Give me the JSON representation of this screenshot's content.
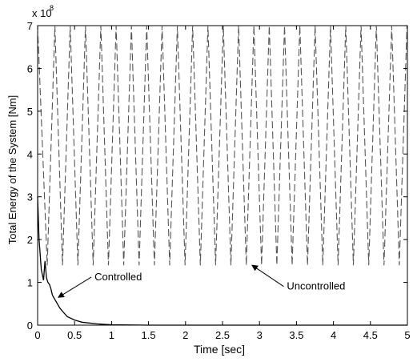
{
  "chart_data": {
    "type": "line",
    "title": "",
    "xlabel": "Time [sec]",
    "ylabel": "Total Energy of the System [Nm]",
    "xlim": [
      0,
      5
    ],
    "ylim": [
      0,
      7
    ],
    "y_exponent_label": "x 10",
    "y_exponent_power": "8",
    "xticks": [
      0,
      0.5,
      1,
      1.5,
      2,
      2.5,
      3,
      3.5,
      4,
      4.5,
      5
    ],
    "xtick_labels": [
      "0",
      "0.5",
      "1",
      "1.5",
      "2",
      "2.5",
      "3",
      "3.5",
      "4",
      "4.5",
      "5"
    ],
    "yticks": [
      0,
      1,
      2,
      3,
      4,
      5,
      6,
      7
    ],
    "ytick_labels": [
      "0",
      "1",
      "2",
      "3",
      "4",
      "5",
      "6",
      "7"
    ],
    "grid": false,
    "series": [
      {
        "name": "Uncontrolled",
        "style": "dashed",
        "color": "#555555",
        "peak_value": 7.0,
        "trough_value": 1.4,
        "period": 0.207,
        "first_trough_time": 0.13,
        "end_time": 5.0
      },
      {
        "name": "Controlled",
        "style": "solid",
        "color": "#000000",
        "x": [
          0,
          0.02,
          0.05,
          0.08,
          0.1,
          0.12,
          0.14,
          0.16,
          0.18,
          0.2,
          0.25,
          0.3,
          0.35,
          0.4,
          0.5,
          0.6,
          0.8,
          1.0,
          1.5,
          2.0,
          5.0
        ],
        "values": [
          3.0,
          2.0,
          1.3,
          1.05,
          1.5,
          1.1,
          1.0,
          0.95,
          0.85,
          0.7,
          0.55,
          0.4,
          0.3,
          0.2,
          0.12,
          0.07,
          0.03,
          0.01,
          0.0,
          0.0,
          0.0
        ]
      }
    ],
    "annotations": [
      {
        "text": "Controlled",
        "x": 0.77,
        "y": 1.05,
        "arrow_to": [
          0.28,
          0.65
        ]
      },
      {
        "text": "Uncontrolled",
        "x": 3.37,
        "y": 0.83,
        "arrow_to": [
          2.9,
          1.4
        ]
      }
    ]
  }
}
